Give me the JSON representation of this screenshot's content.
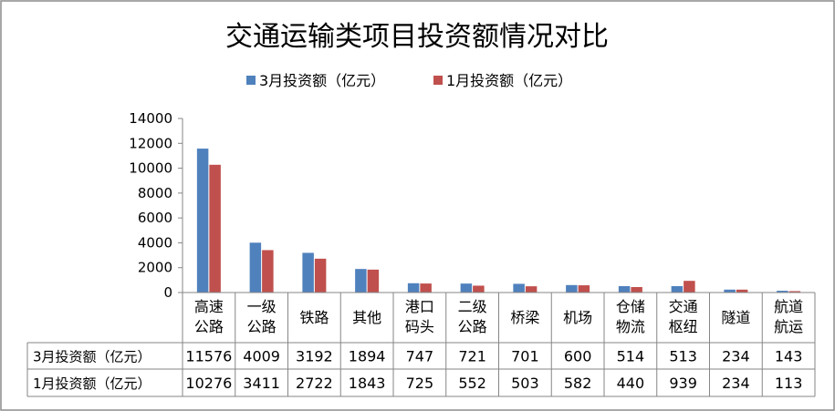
{
  "chart_data": {
    "type": "bar",
    "title": "交通运输类项目投资额情况对比",
    "categories": [
      [
        "高速",
        "公路"
      ],
      [
        "一级",
        "公路"
      ],
      [
        "铁路"
      ],
      [
        "其他"
      ],
      [
        "港口",
        "码头"
      ],
      [
        "二级",
        "公路"
      ],
      [
        "桥梁"
      ],
      [
        "机场"
      ],
      [
        "仓储",
        "物流"
      ],
      [
        "交通",
        "枢纽"
      ],
      [
        "隧道"
      ],
      [
        "航道",
        "航运"
      ]
    ],
    "series": [
      {
        "name": "3月投资额（亿元）",
        "color": "#4F81BD",
        "values": [
          11576,
          4009,
          3192,
          1894,
          747,
          721,
          701,
          600,
          514,
          513,
          234,
          143
        ]
      },
      {
        "name": "1月投资额（亿元）",
        "color": "#C0504D",
        "values": [
          10276,
          3411,
          2722,
          1843,
          725,
          552,
          503,
          582,
          440,
          939,
          234,
          113
        ]
      }
    ],
    "ylim": [
      0,
      14000
    ],
    "yticks": [
      "0",
      "2000",
      "4000",
      "6000",
      "8000",
      "10000",
      "12000",
      "14000"
    ],
    "table_values": [
      [
        "11576",
        "4009",
        "3192",
        "1894",
        "747",
        "721",
        "701",
        "600",
        "514",
        "513",
        "234",
        "143"
      ],
      [
        "10276",
        "3411",
        "2722",
        "1843",
        "725",
        "552",
        "503",
        "582",
        "440",
        "939",
        "234",
        "113"
      ]
    ],
    "legend_position": "top-center",
    "grid": false
  }
}
